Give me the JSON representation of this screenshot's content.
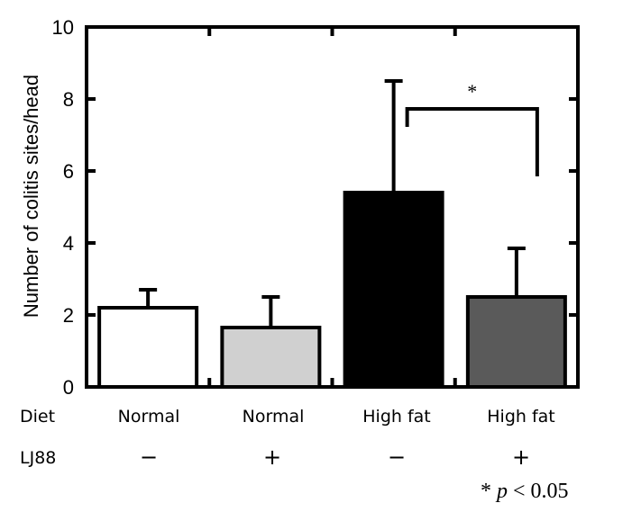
{
  "chart_data": {
    "type": "bar",
    "title": "",
    "xlabel": "",
    "ylabel": "Number of colitis sites/head",
    "ylim": [
      0,
      10
    ],
    "yticks": [
      0,
      2,
      4,
      6,
      8,
      10
    ],
    "ytick_labels": [
      "0",
      "2",
      "4",
      "6",
      "8",
      "10"
    ],
    "grid": false,
    "categories": [
      "Normal / −",
      "Normal / +",
      "High fat / −",
      "High fat / +"
    ],
    "values": [
      2.2,
      1.65,
      5.4,
      2.5
    ],
    "error_upper": [
      0.5,
      0.85,
      3.1,
      1.35
    ],
    "bar_colors": [
      "#ffffff",
      "#d0d0d0",
      "#000000",
      "#5a5a5a"
    ],
    "row_labels": [
      {
        "name": "Diet",
        "values": [
          "Normal",
          "Normal",
          "High fat",
          "High fat"
        ]
      },
      {
        "name": "LJ88",
        "values": [
          "−",
          "+",
          "−",
          "+"
        ]
      }
    ],
    "significance": [
      {
        "between": [
          2,
          3
        ],
        "marker": "*"
      }
    ],
    "annotations": [
      "* p < 0.05"
    ],
    "note": {
      "star": "*",
      "p": "p",
      "rest": "< 0.05"
    }
  }
}
